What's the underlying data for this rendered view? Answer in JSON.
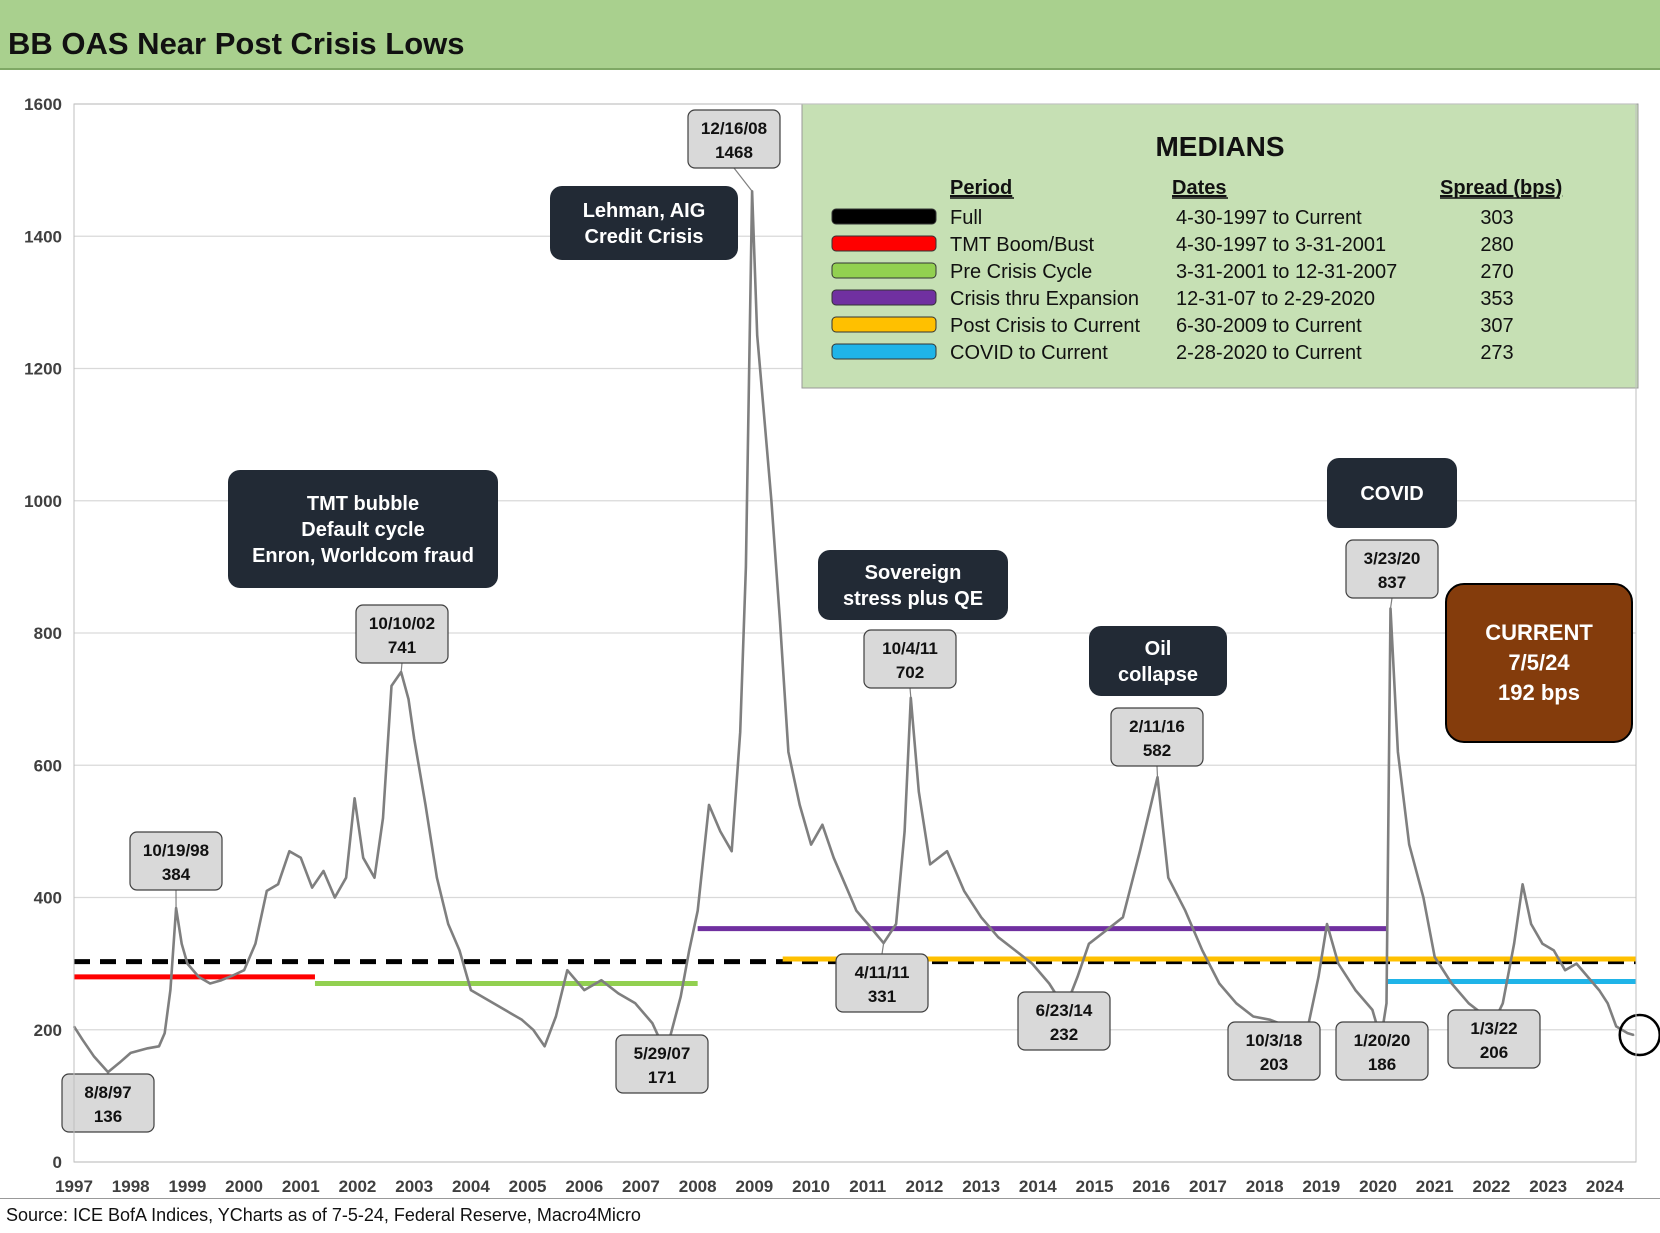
{
  "header": {
    "title": "BB OAS Near Post Crisis Lows"
  },
  "footer": {
    "source": "Source: ICE BofA Indices, YCharts as of 7-5-24, Federal Reserve, Macro4Micro"
  },
  "colors": {
    "frame": "#a9d08e",
    "series": "#7f7f7f",
    "median_full": "#000000",
    "median_tmt": "#ff0000",
    "median_precrisis": "#92d050",
    "median_crisis": "#7030a0",
    "median_postcrisis": "#ffc000",
    "median_covid": "#1fb4e8",
    "dark_box": "#222a35",
    "current_box": "#843c0c",
    "callout_box": "#d9d9d9",
    "legend_bg": "#c6e0b4"
  },
  "chart_data": {
    "type": "line",
    "title": "BB OAS Near Post Crisis Lows",
    "xlabel": "",
    "ylabel": "",
    "xlim": [
      1997.0,
      2024.55
    ],
    "ylim": [
      0,
      1600
    ],
    "yticks": [
      0,
      200,
      400,
      600,
      800,
      1000,
      1200,
      1400,
      1600
    ],
    "xtick_labels": [
      "1997",
      "1998",
      "1999",
      "2000",
      "2001",
      "2002",
      "2003",
      "2004",
      "2005",
      "2006",
      "2007",
      "2008",
      "2009",
      "2010",
      "2011",
      "2012",
      "2013",
      "2014",
      "2015",
      "2016",
      "2017",
      "2018",
      "2019",
      "2020",
      "2021",
      "2022",
      "2023",
      "2024"
    ],
    "series": [
      {
        "name": "BB OAS (bps)",
        "points": [
          [
            1997.0,
            205
          ],
          [
            1997.15,
            185
          ],
          [
            1997.35,
            160
          ],
          [
            1997.6,
            136
          ],
          [
            1997.8,
            150
          ],
          [
            1998.0,
            165
          ],
          [
            1998.3,
            172
          ],
          [
            1998.5,
            175
          ],
          [
            1998.6,
            195
          ],
          [
            1998.7,
            260
          ],
          [
            1998.8,
            384
          ],
          [
            1998.9,
            330
          ],
          [
            1999.0,
            300
          ],
          [
            1999.2,
            280
          ],
          [
            1999.4,
            270
          ],
          [
            1999.6,
            275
          ],
          [
            1999.8,
            282
          ],
          [
            2000.0,
            290
          ],
          [
            2000.2,
            330
          ],
          [
            2000.4,
            410
          ],
          [
            2000.6,
            420
          ],
          [
            2000.8,
            470
          ],
          [
            2001.0,
            460
          ],
          [
            2001.2,
            415
          ],
          [
            2001.4,
            440
          ],
          [
            2001.6,
            400
          ],
          [
            2001.8,
            430
          ],
          [
            2001.95,
            550
          ],
          [
            2002.1,
            460
          ],
          [
            2002.3,
            430
          ],
          [
            2002.45,
            520
          ],
          [
            2002.6,
            720
          ],
          [
            2002.77,
            741
          ],
          [
            2002.9,
            700
          ],
          [
            2003.0,
            640
          ],
          [
            2003.2,
            540
          ],
          [
            2003.4,
            430
          ],
          [
            2003.6,
            360
          ],
          [
            2003.8,
            320
          ],
          [
            2004.0,
            260
          ],
          [
            2004.3,
            245
          ],
          [
            2004.6,
            230
          ],
          [
            2004.9,
            215
          ],
          [
            2005.1,
            200
          ],
          [
            2005.3,
            175
          ],
          [
            2005.5,
            220
          ],
          [
            2005.7,
            290
          ],
          [
            2006.0,
            260
          ],
          [
            2006.3,
            275
          ],
          [
            2006.6,
            255
          ],
          [
            2006.9,
            240
          ],
          [
            2007.2,
            210
          ],
          [
            2007.41,
            171
          ],
          [
            2007.5,
            185
          ],
          [
            2007.7,
            250
          ],
          [
            2007.85,
            320
          ],
          [
            2008.0,
            380
          ],
          [
            2008.2,
            540
          ],
          [
            2008.4,
            500
          ],
          [
            2008.6,
            470
          ],
          [
            2008.75,
            650
          ],
          [
            2008.85,
            900
          ],
          [
            2008.96,
            1468
          ],
          [
            2009.05,
            1250
          ],
          [
            2009.15,
            1150
          ],
          [
            2009.3,
            1000
          ],
          [
            2009.45,
            820
          ],
          [
            2009.6,
            620
          ],
          [
            2009.8,
            540
          ],
          [
            2010.0,
            480
          ],
          [
            2010.2,
            510
          ],
          [
            2010.4,
            460
          ],
          [
            2010.6,
            420
          ],
          [
            2010.8,
            380
          ],
          [
            2011.0,
            360
          ],
          [
            2011.28,
            331
          ],
          [
            2011.5,
            360
          ],
          [
            2011.65,
            500
          ],
          [
            2011.76,
            702
          ],
          [
            2011.9,
            560
          ],
          [
            2012.1,
            450
          ],
          [
            2012.4,
            470
          ],
          [
            2012.7,
            410
          ],
          [
            2013.0,
            370
          ],
          [
            2013.3,
            340
          ],
          [
            2013.6,
            320
          ],
          [
            2013.9,
            300
          ],
          [
            2014.2,
            270
          ],
          [
            2014.48,
            232
          ],
          [
            2014.7,
            280
          ],
          [
            2014.9,
            330
          ],
          [
            2015.2,
            350
          ],
          [
            2015.5,
            370
          ],
          [
            2015.8,
            470
          ],
          [
            2016.11,
            582
          ],
          [
            2016.3,
            430
          ],
          [
            2016.6,
            380
          ],
          [
            2016.9,
            320
          ],
          [
            2017.2,
            270
          ],
          [
            2017.5,
            240
          ],
          [
            2017.8,
            220
          ],
          [
            2018.1,
            215
          ],
          [
            2018.4,
            205
          ],
          [
            2018.76,
            203
          ],
          [
            2018.95,
            280
          ],
          [
            2019.1,
            360
          ],
          [
            2019.3,
            300
          ],
          [
            2019.6,
            260
          ],
          [
            2019.9,
            230
          ],
          [
            2020.05,
            186
          ],
          [
            2020.15,
            240
          ],
          [
            2020.22,
            837
          ],
          [
            2020.35,
            620
          ],
          [
            2020.55,
            480
          ],
          [
            2020.8,
            400
          ],
          [
            2021.0,
            310
          ],
          [
            2021.3,
            270
          ],
          [
            2021.6,
            240
          ],
          [
            2021.9,
            220
          ],
          [
            2022.01,
            206
          ],
          [
            2022.2,
            240
          ],
          [
            2022.4,
            330
          ],
          [
            2022.55,
            420
          ],
          [
            2022.7,
            360
          ],
          [
            2022.9,
            330
          ],
          [
            2023.1,
            320
          ],
          [
            2023.3,
            290
          ],
          [
            2023.5,
            300
          ],
          [
            2023.7,
            280
          ],
          [
            2023.9,
            260
          ],
          [
            2024.05,
            240
          ],
          [
            2024.2,
            205
          ],
          [
            2024.4,
            195
          ],
          [
            2024.51,
            192
          ]
        ]
      }
    ],
    "medians": [
      {
        "name": "Full",
        "value": 303,
        "from": 1997.0,
        "to": 2024.55,
        "dashed": true
      },
      {
        "name": "TMT Boom/Bust",
        "value": 280,
        "from": 1997.0,
        "to": 2001.25
      },
      {
        "name": "Pre Crisis Cycle",
        "value": 270,
        "from": 2001.25,
        "to": 2008.0
      },
      {
        "name": "Crisis thru Expansion",
        "value": 353,
        "from": 2008.0,
        "to": 2020.16
      },
      {
        "name": "Post Crisis to Current",
        "value": 307,
        "from": 2009.5,
        "to": 2024.55
      },
      {
        "name": "COVID to Current",
        "value": 273,
        "from": 2020.16,
        "to": 2024.55
      }
    ],
    "point_labels": [
      {
        "date": "8/8/97",
        "value": "136",
        "x": 1997.6,
        "y": 136,
        "pos": "below"
      },
      {
        "date": "10/19/98",
        "value": "384",
        "x": 1998.8,
        "y": 384,
        "pos": "above"
      },
      {
        "date": "10/10/02",
        "value": "741",
        "x": 2002.77,
        "y": 741,
        "pos": "above"
      },
      {
        "date": "5/29/07",
        "value": "171",
        "x": 2007.41,
        "y": 171,
        "pos": "below"
      },
      {
        "date": "12/16/08",
        "value": "1468",
        "x": 2008.96,
        "y": 1468,
        "pos": "above"
      },
      {
        "date": "4/11/11",
        "value": "331",
        "x": 2011.28,
        "y": 331,
        "pos": "below"
      },
      {
        "date": "10/4/11",
        "value": "702",
        "x": 2011.76,
        "y": 702,
        "pos": "above"
      },
      {
        "date": "6/23/14",
        "value": "232",
        "x": 2014.48,
        "y": 232,
        "pos": "below"
      },
      {
        "date": "2/11/16",
        "value": "582",
        "x": 2016.11,
        "y": 582,
        "pos": "above"
      },
      {
        "date": "10/3/18",
        "value": "203",
        "x": 2018.76,
        "y": 203,
        "pos": "below"
      },
      {
        "date": "1/20/20",
        "value": "186",
        "x": 2020.05,
        "y": 186,
        "pos": "below"
      },
      {
        "date": "3/23/20",
        "value": "837",
        "x": 2020.22,
        "y": 837,
        "pos": "above"
      },
      {
        "date": "1/3/22",
        "value": "206",
        "x": 2022.01,
        "y": 206,
        "pos": "below"
      }
    ],
    "annotations": [
      {
        "lines": [
          "TMT bubble",
          "Default cycle",
          "Enron, Worldcom fraud"
        ]
      },
      {
        "lines": [
          "Lehman, AIG",
          "Credit Crisis"
        ]
      },
      {
        "lines": [
          "Sovereign",
          "stress plus QE"
        ]
      },
      {
        "lines": [
          "Oil",
          "collapse"
        ]
      },
      {
        "lines": [
          "COVID"
        ]
      }
    ],
    "current_box": {
      "lines": [
        "CURRENT",
        "7/5/24",
        "192 bps"
      ]
    },
    "legend": {
      "title": "MEDIANS",
      "headers": [
        "Period",
        "Dates",
        "Spread (bps)"
      ],
      "rows": [
        {
          "period": "Full",
          "dates": "4-30-1997 to Current",
          "spread": "303"
        },
        {
          "period": "TMT Boom/Bust",
          "dates": "4-30-1997 to 3-31-2001",
          "spread": "280"
        },
        {
          "period": "Pre Crisis Cycle",
          "dates": "3-31-2001 to 12-31-2007",
          "spread": "270"
        },
        {
          "period": "Crisis thru Expansion",
          "dates": "12-31-07 to 2-29-2020",
          "spread": "353"
        },
        {
          "period": "Post Crisis to Current",
          "dates": "6-30-2009 to Current",
          "spread": "307"
        },
        {
          "period": "COVID to Current",
          "dates": "2-28-2020 to Current",
          "spread": "273"
        }
      ]
    }
  }
}
